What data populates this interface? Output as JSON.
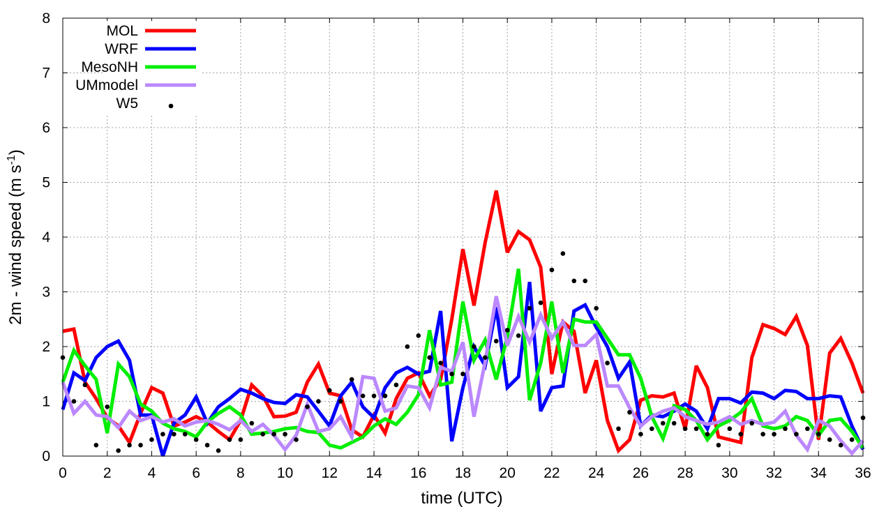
{
  "chart_data": {
    "type": "line",
    "xlabel": "time (UTC)",
    "ylabel_main": "2m - wind speed  (m s",
    "ylabel_sup": "-1",
    "ylabel_close": ")",
    "xlim": [
      0,
      36
    ],
    "ylim": [
      0,
      8
    ],
    "xticks": [
      0,
      2,
      4,
      6,
      8,
      10,
      12,
      14,
      16,
      18,
      20,
      22,
      24,
      26,
      28,
      30,
      32,
      34,
      36
    ],
    "yticks": [
      0,
      1,
      2,
      3,
      4,
      5,
      6,
      7,
      8
    ],
    "grid": true,
    "legend_position": "top-left",
    "series": [
      {
        "name": "MOL",
        "color": "#ff0000",
        "kind": "line",
        "x": [
          0,
          0.5,
          1,
          1.5,
          2,
          2.5,
          3,
          3.5,
          4,
          4.5,
          5,
          5.5,
          6,
          6.5,
          7,
          7.5,
          8,
          8.5,
          9,
          9.5,
          10,
          10.5,
          11,
          11.5,
          12,
          12.5,
          13,
          13.5,
          14,
          14.5,
          15,
          15.5,
          16,
          16.5,
          17,
          17.5,
          18,
          18.5,
          19,
          19.5,
          20,
          20.5,
          21,
          21.5,
          22,
          22.5,
          23,
          23.5,
          24,
          24.5,
          25,
          25.5,
          26,
          26.5,
          27,
          27.5,
          28,
          28.5,
          29,
          29.5,
          30,
          30.5,
          31,
          31.5,
          32,
          32.5,
          33,
          33.5,
          34,
          34.5,
          35,
          35.5,
          36
        ],
        "y": [
          2.28,
          2.32,
          1.35,
          1.05,
          0.7,
          0.55,
          0.25,
          0.78,
          1.25,
          1.15,
          0.55,
          0.62,
          0.72,
          0.62,
          0.45,
          0.3,
          0.65,
          1.3,
          1.1,
          0.72,
          0.73,
          0.8,
          1.35,
          1.68,
          1.15,
          1.1,
          0.48,
          0.35,
          0.75,
          0.42,
          1.05,
          1.42,
          1.52,
          1.1,
          1.4,
          2.5,
          3.78,
          2.75,
          3.9,
          4.85,
          3.72,
          4.1,
          3.95,
          3.45,
          1.5,
          2.45,
          2.28,
          1.15,
          1.75,
          0.65,
          0.1,
          0.3,
          1.02,
          1.1,
          1.08,
          1.15,
          0.5,
          1.65,
          1.25,
          0.35,
          0.3,
          0.25,
          1.8,
          2.4,
          2.33,
          2.22,
          2.55,
          2.02,
          0.3,
          1.88,
          2.15,
          1.7,
          1.15
        ]
      },
      {
        "name": "WRF",
        "color": "#0000ff",
        "kind": "line",
        "x": [
          0,
          0.5,
          1,
          1.5,
          2,
          2.5,
          3,
          3.5,
          4,
          4.5,
          5,
          5.5,
          6,
          6.5,
          7,
          7.5,
          8,
          8.5,
          9,
          9.5,
          10,
          10.5,
          11,
          11.5,
          12,
          12.5,
          13,
          13.5,
          14,
          14.5,
          15,
          15.5,
          16,
          16.5,
          17,
          17.5,
          18,
          18.5,
          19,
          19.5,
          20,
          20.5,
          21,
          21.5,
          22,
          22.5,
          23,
          23.5,
          24,
          24.5,
          25,
          25.5,
          26,
          26.5,
          27,
          27.5,
          28,
          28.5,
          29,
          29.5,
          30,
          30.5,
          31,
          31.5,
          32,
          32.5,
          33,
          33.5,
          34,
          34.5,
          35,
          35.5,
          36
        ],
        "y": [
          0.85,
          1.52,
          1.38,
          1.8,
          2.0,
          2.1,
          1.75,
          0.75,
          0.75,
          0.0,
          0.6,
          0.75,
          1.08,
          0.6,
          0.9,
          1.05,
          1.22,
          1.15,
          1.05,
          0.98,
          0.96,
          1.12,
          1.08,
          0.82,
          0.55,
          1.1,
          1.35,
          0.9,
          0.7,
          1.25,
          1.52,
          1.62,
          1.5,
          1.55,
          2.65,
          0.27,
          1.25,
          2.0,
          1.65,
          2.72,
          1.25,
          1.45,
          3.18,
          0.82,
          1.25,
          1.28,
          2.65,
          2.76,
          2.35,
          2.0,
          1.42,
          1.72,
          0.55,
          0.75,
          0.72,
          0.82,
          0.95,
          0.82,
          0.5,
          1.05,
          1.05,
          0.97,
          1.17,
          1.15,
          1.05,
          1.2,
          1.18,
          1.05,
          1.05,
          1.1,
          1.08,
          0.55,
          0.12
        ]
      },
      {
        "name": "MesoNH",
        "color": "#00ee00",
        "kind": "line",
        "x": [
          0,
          0.5,
          1,
          1.5,
          2,
          2.5,
          3,
          3.5,
          4,
          4.5,
          5,
          5.5,
          6,
          6.5,
          7,
          7.5,
          8,
          8.5,
          9,
          9.5,
          10,
          10.5,
          11,
          11.5,
          12,
          12.5,
          13,
          13.5,
          14,
          14.5,
          15,
          15.5,
          16,
          16.5,
          17,
          17.5,
          18,
          18.5,
          19,
          19.5,
          20,
          20.5,
          21,
          21.5,
          22,
          22.5,
          23,
          23.5,
          24,
          24.5,
          25,
          25.5,
          26,
          26.5,
          27,
          27.5,
          28,
          28.5,
          29,
          29.5,
          30,
          30.5,
          31,
          31.5,
          32,
          32.5,
          33,
          33.5,
          34,
          34.5,
          35,
          35.5,
          36
        ],
        "y": [
          1.35,
          1.93,
          1.65,
          1.4,
          0.42,
          1.68,
          1.45,
          0.95,
          0.82,
          0.6,
          0.5,
          0.45,
          0.35,
          0.62,
          0.78,
          0.9,
          0.75,
          0.4,
          0.42,
          0.45,
          0.5,
          0.52,
          0.45,
          0.43,
          0.2,
          0.15,
          0.25,
          0.35,
          0.55,
          0.68,
          0.58,
          0.8,
          1.12,
          2.3,
          1.3,
          1.35,
          2.82,
          1.75,
          2.12,
          1.4,
          2.18,
          3.42,
          1.02,
          1.7,
          2.82,
          1.52,
          2.5,
          2.45,
          2.45,
          2.15,
          1.85,
          1.85,
          1.42,
          0.72,
          0.32,
          0.92,
          0.85,
          0.65,
          0.3,
          0.55,
          0.65,
          0.8,
          1.05,
          0.55,
          0.5,
          0.55,
          0.72,
          0.65,
          0.38,
          0.65,
          0.68,
          0.45,
          0.15
        ]
      },
      {
        "name": "UMmodel",
        "color": "#bb88ff",
        "kind": "line",
        "x": [
          0,
          0.5,
          1,
          1.5,
          2,
          2.5,
          3,
          3.5,
          4,
          4.5,
          5,
          5.5,
          6,
          6.5,
          7,
          7.5,
          8,
          8.5,
          9,
          9.5,
          10,
          10.5,
          11,
          11.5,
          12,
          12.5,
          13,
          13.5,
          14,
          14.5,
          15,
          15.5,
          16,
          16.5,
          17,
          17.5,
          18,
          18.5,
          19,
          19.5,
          20,
          20.5,
          21,
          21.5,
          22,
          22.5,
          23,
          23.5,
          24,
          24.5,
          25,
          25.5,
          26,
          26.5,
          27,
          27.5,
          28,
          28.5,
          29,
          29.5,
          30,
          30.5,
          31,
          31.5,
          32,
          32.5,
          33,
          33.5,
          34,
          34.5,
          35,
          35.5,
          36
        ],
        "y": [
          1.35,
          0.78,
          1.0,
          0.75,
          0.72,
          0.52,
          0.82,
          0.65,
          0.72,
          0.62,
          0.68,
          0.55,
          0.62,
          0.65,
          0.58,
          0.48,
          0.65,
          0.45,
          0.58,
          0.38,
          0.12,
          0.38,
          0.95,
          0.45,
          0.5,
          0.72,
          0.35,
          1.45,
          1.42,
          0.82,
          0.88,
          1.28,
          1.25,
          0.88,
          1.62,
          1.55,
          2.08,
          0.72,
          1.72,
          2.92,
          2.02,
          2.55,
          2.08,
          2.58,
          2.15,
          2.45,
          2.02,
          2.02,
          2.22,
          1.28,
          1.28,
          0.88,
          0.55,
          0.72,
          0.82,
          0.88,
          0.72,
          0.65,
          0.58,
          0.62,
          0.72,
          0.58,
          0.65,
          0.58,
          0.62,
          0.82,
          0.38,
          0.12,
          0.65,
          0.55,
          0.28,
          0.05,
          0.28
        ]
      },
      {
        "name": "W5",
        "color": "#000000",
        "kind": "points",
        "x": [
          0,
          0.5,
          1,
          1.5,
          2,
          2.5,
          3,
          3.5,
          4,
          4.5,
          5,
          5.5,
          6,
          6.5,
          7,
          7.5,
          8,
          8.5,
          9,
          9.5,
          10,
          10.5,
          11,
          11.5,
          12,
          12.5,
          13,
          13.5,
          14,
          14.5,
          15,
          15.5,
          16,
          16.5,
          17,
          17.5,
          18,
          18.5,
          19,
          19.5,
          20,
          20.5,
          21,
          21.5,
          22,
          22.5,
          23,
          23.5,
          24,
          24.5,
          25,
          25.5,
          26,
          26.5,
          27,
          27.5,
          28,
          28.5,
          29,
          29.5,
          30,
          30.5,
          31,
          31.5,
          32,
          32.5,
          33,
          33.5,
          34,
          34.5,
          35,
          35.5,
          36
        ],
        "y": [
          1.8,
          1.0,
          1.3,
          0.2,
          0.9,
          0.1,
          0.2,
          0.2,
          0.3,
          0.4,
          0.4,
          0.4,
          0.3,
          0.2,
          0.1,
          0.3,
          0.3,
          0.6,
          0.4,
          0.4,
          0.4,
          0.3,
          0.9,
          1.0,
          1.2,
          1.0,
          1.4,
          1.1,
          1.1,
          1.1,
          1.3,
          2.0,
          2.2,
          1.8,
          1.7,
          1.5,
          1.5,
          2.0,
          1.8,
          2.1,
          2.3,
          2.2,
          2.7,
          2.8,
          3.4,
          3.7,
          3.2,
          3.2,
          2.7,
          1.7,
          0.5,
          0.8,
          0.4,
          0.5,
          0.6,
          0.6,
          0.5,
          0.5,
          0.4,
          0.2,
          0.5,
          0.4,
          0.6,
          0.4,
          0.4,
          0.5,
          0.4,
          0.5,
          0.4,
          0.3,
          0.2,
          0.3,
          0.7
        ]
      }
    ]
  }
}
